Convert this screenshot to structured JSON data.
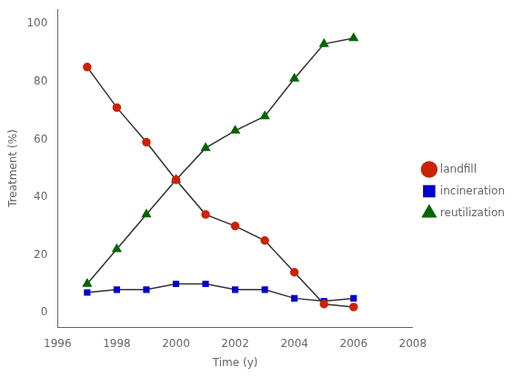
{
  "chart_data": {
    "type": "line",
    "x": [
      1997,
      1998,
      1999,
      2000,
      2001,
      2002,
      2003,
      2004,
      2005,
      2006
    ],
    "series": [
      {
        "name": "landfill",
        "color": "#cc2200",
        "marker": "circle",
        "values": [
          85,
          71,
          59,
          46,
          34,
          30,
          25,
          14,
          3,
          2
        ]
      },
      {
        "name": "incineration",
        "color": "#0000cc",
        "marker": "square",
        "values": [
          7,
          8,
          8,
          10,
          10,
          8,
          8,
          5,
          4,
          5
        ]
      },
      {
        "name": "reutilization",
        "color": "#006600",
        "marker": "triangle",
        "values": [
          10,
          22,
          34,
          46,
          57,
          63,
          68,
          81,
          93,
          95
        ]
      }
    ],
    "color": "#333333",
    "x_label": "Time (y)",
    "y_label": "Treatment (%)",
    "xlim": [
      1996,
      2008
    ],
    "xticks": [
      1996,
      1998,
      2000,
      2002,
      2004,
      2006,
      2008
    ],
    "ylim": [
      -5,
      105
    ],
    "yticks": [
      0,
      20,
      40,
      60,
      80,
      100
    ],
    "grid": false,
    "legend": "right"
  }
}
